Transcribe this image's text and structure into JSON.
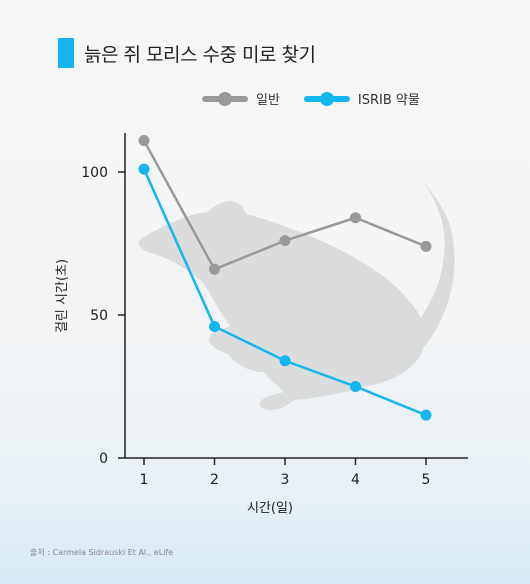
{
  "title": "늙은 쥐 모리스 수중 미로 찾기",
  "source": "출처 : Carmela Sidrauski Et Al., eLife",
  "colors": {
    "accent": "#12b7ef",
    "normal": "#999999",
    "isrib": "#12b7ef"
  },
  "chart_data": {
    "type": "line",
    "title": "늙은 쥐 모리스 수중 미로 찾기",
    "xlabel": "시간(일)",
    "ylabel": "걸린 시간(초)",
    "x": [
      1,
      2,
      3,
      4,
      5
    ],
    "x_tick_labels": [
      "1",
      "2",
      "3",
      "4",
      "5"
    ],
    "y_ticks": [
      0,
      50,
      100
    ],
    "y_tick_labels": [
      "0",
      "50",
      "100"
    ],
    "ylim": [
      0,
      112
    ],
    "grid": false,
    "legend_position": "top",
    "series": [
      {
        "name": "일반",
        "color": "#999999",
        "values": [
          111,
          66,
          76,
          84,
          74
        ]
      },
      {
        "name": "ISRIB 약물",
        "color": "#12b7ef",
        "values": [
          101,
          46,
          34,
          25,
          15
        ]
      }
    ]
  }
}
